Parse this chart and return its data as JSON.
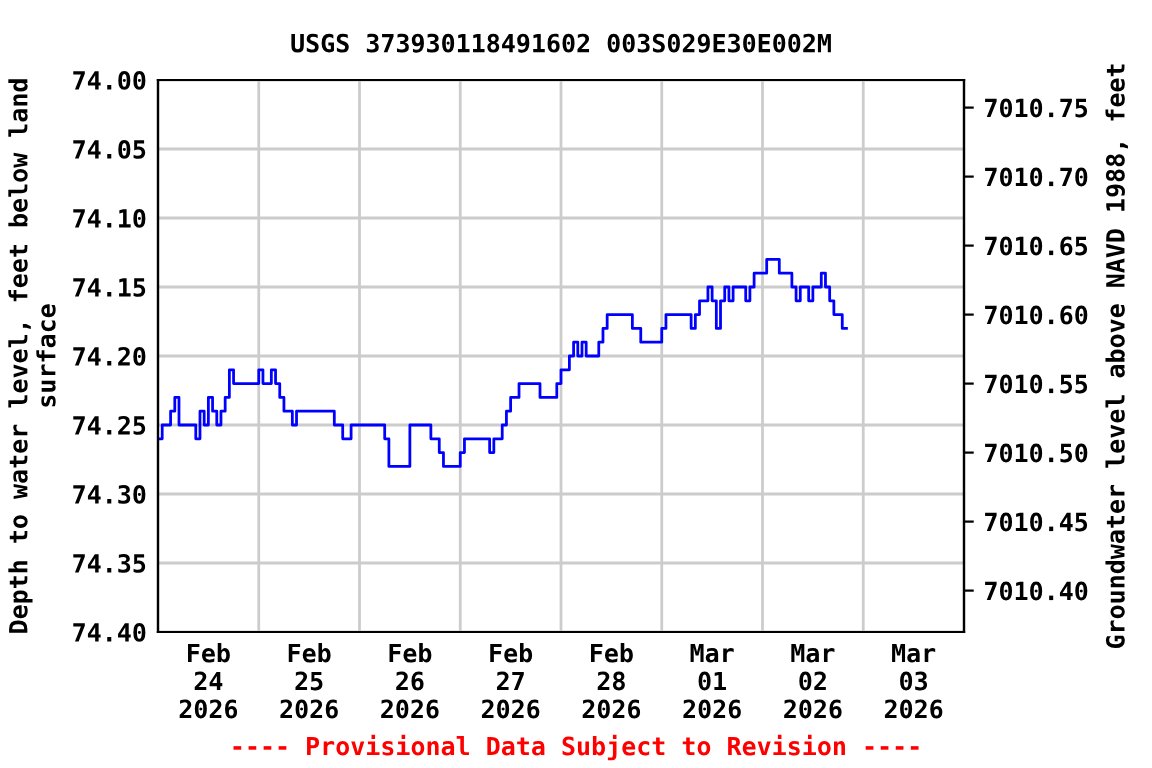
{
  "chart_data": {
    "type": "step",
    "title": "USGS 373930118491602 003S029E30E002M",
    "ylabel": "Depth to water level, feet below land\nsurface",
    "y2label": "Groundwater level above NAVD 1988, feet",
    "annotations": [
      "---- Provisional Data Subject to Revision ----"
    ],
    "x": [
      "2026-02-24T00:00",
      "2026-02-24T01:00",
      "2026-02-24T03:00",
      "2026-02-24T04:00",
      "2026-02-24T05:00",
      "2026-02-24T09:00",
      "2026-02-24T10:00",
      "2026-02-24T11:00",
      "2026-02-24T12:00",
      "2026-02-24T13:00",
      "2026-02-24T14:00",
      "2026-02-24T15:00",
      "2026-02-24T16:00",
      "2026-02-24T17:00",
      "2026-02-24T18:00",
      "2026-02-25T00:00",
      "2026-02-25T01:00",
      "2026-02-25T03:00",
      "2026-02-25T04:00",
      "2026-02-25T05:00",
      "2026-02-25T06:00",
      "2026-02-25T08:00",
      "2026-02-25T09:00",
      "2026-02-25T18:00",
      "2026-02-25T20:00",
      "2026-02-25T22:00",
      "2026-02-26T06:00",
      "2026-02-26T07:00",
      "2026-02-26T12:00",
      "2026-02-26T17:00",
      "2026-02-26T19:00",
      "2026-02-26T20:00",
      "2026-02-27T00:00",
      "2026-02-27T01:00",
      "2026-02-27T07:00",
      "2026-02-27T08:00",
      "2026-02-27T10:00",
      "2026-02-27T11:00",
      "2026-02-27T12:00",
      "2026-02-27T14:00",
      "2026-02-27T19:00",
      "2026-02-27T23:00",
      "2026-02-28T00:00",
      "2026-02-28T02:00",
      "2026-02-28T03:00",
      "2026-02-28T04:00",
      "2026-02-28T05:00",
      "2026-02-28T06:00",
      "2026-02-28T09:00",
      "2026-02-28T10:00",
      "2026-02-28T11:00",
      "2026-02-28T17:00",
      "2026-02-28T19:00",
      "2026-03-01T00:00",
      "2026-03-01T01:00",
      "2026-03-01T07:00",
      "2026-03-01T08:00",
      "2026-03-01T09:00",
      "2026-03-01T11:00",
      "2026-03-01T12:00",
      "2026-03-01T13:00",
      "2026-03-01T14:00",
      "2026-03-01T15:00",
      "2026-03-01T16:00",
      "2026-03-01T17:00",
      "2026-03-01T20:00",
      "2026-03-01T21:00",
      "2026-03-01T22:00",
      "2026-03-02T01:00",
      "2026-03-02T04:00",
      "2026-03-02T07:00",
      "2026-03-02T08:00",
      "2026-03-02T09:00",
      "2026-03-02T11:00",
      "2026-03-02T12:00",
      "2026-03-02T14:00",
      "2026-03-02T15:00",
      "2026-03-02T16:00",
      "2026-03-02T17:00",
      "2026-03-02T19:00",
      "2026-03-02T20:00"
    ],
    "series": [
      {
        "color": "#0000ff",
        "values": [
          74.26,
          74.25,
          74.24,
          74.23,
          74.25,
          74.26,
          74.24,
          74.25,
          74.23,
          74.24,
          74.25,
          74.24,
          74.23,
          74.21,
          74.22,
          74.21,
          74.22,
          74.21,
          74.22,
          74.23,
          74.24,
          74.25,
          74.24,
          74.25,
          74.26,
          74.25,
          74.26,
          74.28,
          74.25,
          74.26,
          74.27,
          74.28,
          74.27,
          74.26,
          74.27,
          74.26,
          74.25,
          74.24,
          74.23,
          74.22,
          74.23,
          74.22,
          74.21,
          74.2,
          74.19,
          74.2,
          74.19,
          74.2,
          74.19,
          74.18,
          74.17,
          74.18,
          74.19,
          74.18,
          74.17,
          74.18,
          74.17,
          74.16,
          74.15,
          74.16,
          74.18,
          74.16,
          74.15,
          74.16,
          74.15,
          74.16,
          74.15,
          74.14,
          74.13,
          74.14,
          74.15,
          74.16,
          74.15,
          74.16,
          74.15,
          74.14,
          74.15,
          74.16,
          74.17,
          74.18,
          74.18
        ]
      }
    ],
    "xlim": [
      "2026-02-24T00:00",
      "2026-03-04T00:00"
    ],
    "xticks": [
      {
        "value": "2026-02-24T12:00",
        "label": "Feb\n24\n2026"
      },
      {
        "value": "2026-02-25T12:00",
        "label": "Feb\n25\n2026"
      },
      {
        "value": "2026-02-26T12:00",
        "label": "Feb\n26\n2026"
      },
      {
        "value": "2026-02-27T12:00",
        "label": "Feb\n27\n2026"
      },
      {
        "value": "2026-02-28T12:00",
        "label": "Feb\n28\n2026"
      },
      {
        "value": "2026-03-01T12:00",
        "label": "Mar\n01\n2026"
      },
      {
        "value": "2026-03-02T12:00",
        "label": "Mar\n02\n2026"
      },
      {
        "value": "2026-03-03T12:00",
        "label": "Mar\n03\n2026"
      },
      {
        "value": "2026-02-25T00:00",
        "label": null
      },
      {
        "value": "2026-02-26T00:00",
        "label": null
      },
      {
        "value": "2026-02-27T00:00",
        "label": null
      },
      {
        "value": "2026-02-28T00:00",
        "label": null
      },
      {
        "value": "2026-03-01T00:00",
        "label": null
      },
      {
        "value": "2026-03-02T00:00",
        "label": null
      },
      {
        "value": "2026-03-03T00:00",
        "label": null
      }
    ],
    "ylim": [
      74.4,
      74.0
    ],
    "yticks": [
      {
        "value": 74.0,
        "label": "74.00"
      },
      {
        "value": 74.05,
        "label": "74.05"
      },
      {
        "value": 74.1,
        "label": "74.10"
      },
      {
        "value": 74.15,
        "label": "74.15"
      },
      {
        "value": 74.2,
        "label": "74.20"
      },
      {
        "value": 74.25,
        "label": "74.25"
      },
      {
        "value": 74.3,
        "label": "74.30"
      },
      {
        "value": 74.35,
        "label": "74.35"
      },
      {
        "value": 74.4,
        "label": "74.40"
      }
    ],
    "y2lim": [
      7010.37,
      7010.77
    ],
    "y2ticks": [
      {
        "value": 7010.4,
        "label": "7010.40"
      },
      {
        "value": 7010.45,
        "label": "7010.45"
      },
      {
        "value": 7010.5,
        "label": "7010.50"
      },
      {
        "value": 7010.55,
        "label": "7010.55"
      },
      {
        "value": 7010.6,
        "label": "7010.60"
      },
      {
        "value": 7010.65,
        "label": "7010.65"
      },
      {
        "value": 7010.7,
        "label": "7010.70"
      },
      {
        "value": 7010.75,
        "label": "7010.75"
      }
    ],
    "grid": true,
    "legend": false
  }
}
